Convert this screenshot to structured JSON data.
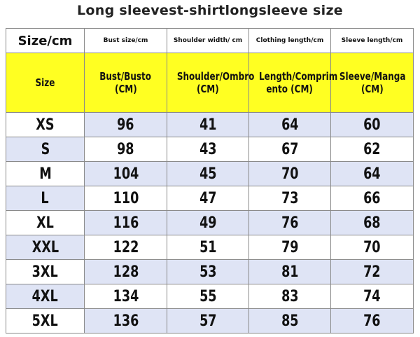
{
  "title": "Long sleevest-shirtlongsleeve size",
  "table": {
    "header": [
      "Size/cm",
      "Bust size/cm",
      "Shoulder width/ cm",
      "Clothing length/cm",
      "Sleeve length/cm"
    ],
    "subheader": [
      [
        "Size"
      ],
      [
        "Bust/Busto",
        "(CM)"
      ],
      [
        "Shoulder/Ombro",
        "(CM)"
      ],
      [
        "Length/Comprim",
        "ento      (CM)"
      ],
      [
        "Sleeve/Manga",
        "(CM)"
      ]
    ],
    "rows": [
      [
        "XS",
        "96",
        "41",
        "64",
        "60"
      ],
      [
        "S",
        "98",
        "43",
        "67",
        "62"
      ],
      [
        "M",
        "104",
        "45",
        "70",
        "64"
      ],
      [
        "L",
        "110",
        "47",
        "73",
        "66"
      ],
      [
        "XL",
        "116",
        "49",
        "76",
        "68"
      ],
      [
        "XXL",
        "122",
        "51",
        "79",
        "70"
      ],
      [
        "3XL",
        "128",
        "53",
        "81",
        "72"
      ],
      [
        "4XL",
        "134",
        "55",
        "83",
        "74"
      ],
      [
        "5XL",
        "136",
        "57",
        "85",
        "76"
      ]
    ]
  }
}
